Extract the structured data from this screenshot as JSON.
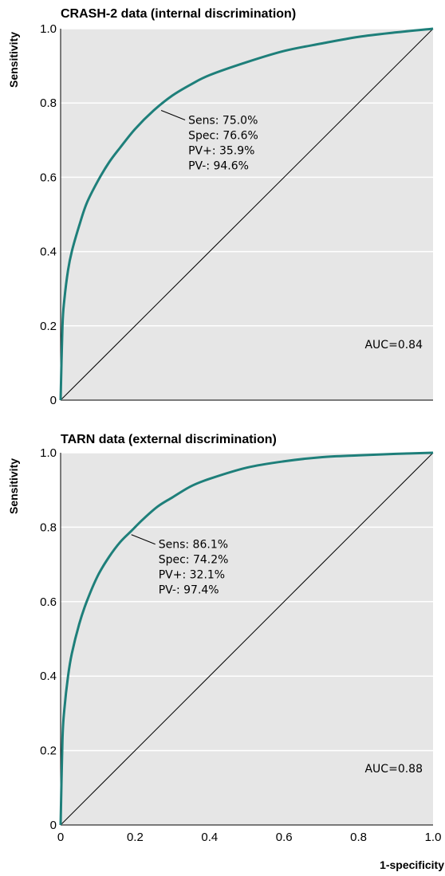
{
  "colors": {
    "curve": "#1e7f7a",
    "plot_background": "#e6e6e6",
    "gridline": "#ffffff"
  },
  "chart_data": [
    {
      "type": "line",
      "title": "CRASH-2 data (internal discrimination)",
      "ylabel": "Sensitivity",
      "xlabel": "",
      "xlim": [
        0,
        1
      ],
      "ylim": [
        0,
        1
      ],
      "y_ticks": [
        "0",
        "0.2",
        "0.4",
        "0.6",
        "0.8",
        "1.0"
      ],
      "x_ticks": [],
      "grid": "horizontal",
      "series": [
        {
          "x": [
            0,
            0.005,
            0.01,
            0.02,
            0.03,
            0.05,
            0.07,
            0.1,
            0.13,
            0.16,
            0.2,
            0.25,
            0.3,
            0.35,
            0.4,
            0.5,
            0.6,
            0.7,
            0.8,
            0.9,
            1.0
          ],
          "y": [
            0,
            0.2,
            0.27,
            0.35,
            0.4,
            0.47,
            0.53,
            0.59,
            0.64,
            0.68,
            0.73,
            0.78,
            0.82,
            0.85,
            0.875,
            0.91,
            0.94,
            0.96,
            0.978,
            0.99,
            1.0
          ]
        }
      ],
      "reference_line": {
        "x": [
          0,
          1
        ],
        "y": [
          0,
          1
        ]
      },
      "annotation": {
        "point": [
          0.27,
          0.78
        ],
        "lines": [
          "Sens: 75.0%",
          "Spec: 76.6%",
          "PV+: 35.9%",
          "PV-: 94.6%"
        ]
      },
      "auc_label": "AUC=0.84"
    },
    {
      "type": "line",
      "title": "TARN data (external discrimination)",
      "ylabel": "Sensitivity",
      "xlabel": "1-specificity",
      "xlim": [
        0,
        1
      ],
      "ylim": [
        0,
        1
      ],
      "y_ticks": [
        "0",
        "0.2",
        "0.4",
        "0.6",
        "0.8",
        "1.0"
      ],
      "x_ticks": [
        "0",
        "0.2",
        "0.4",
        "0.6",
        "0.8",
        "1.0"
      ],
      "grid": "horizontal",
      "series": [
        {
          "x": [
            0,
            0.005,
            0.01,
            0.02,
            0.03,
            0.05,
            0.07,
            0.1,
            0.13,
            0.16,
            0.19,
            0.22,
            0.26,
            0.3,
            0.35,
            0.4,
            0.5,
            0.6,
            0.7,
            0.8,
            0.9,
            1.0
          ],
          "y": [
            0,
            0.23,
            0.31,
            0.4,
            0.46,
            0.54,
            0.6,
            0.67,
            0.72,
            0.76,
            0.79,
            0.82,
            0.855,
            0.88,
            0.91,
            0.93,
            0.96,
            0.977,
            0.988,
            0.993,
            0.997,
            1.0
          ]
        }
      ],
      "reference_line": {
        "x": [
          0,
          1
        ],
        "y": [
          0,
          1
        ]
      },
      "annotation": {
        "point": [
          0.19,
          0.78
        ],
        "lines": [
          "Sens: 86.1%",
          "Spec: 74.2%",
          "PV+: 32.1%",
          "PV-: 97.4%"
        ]
      },
      "auc_label": "AUC=0.88"
    }
  ]
}
